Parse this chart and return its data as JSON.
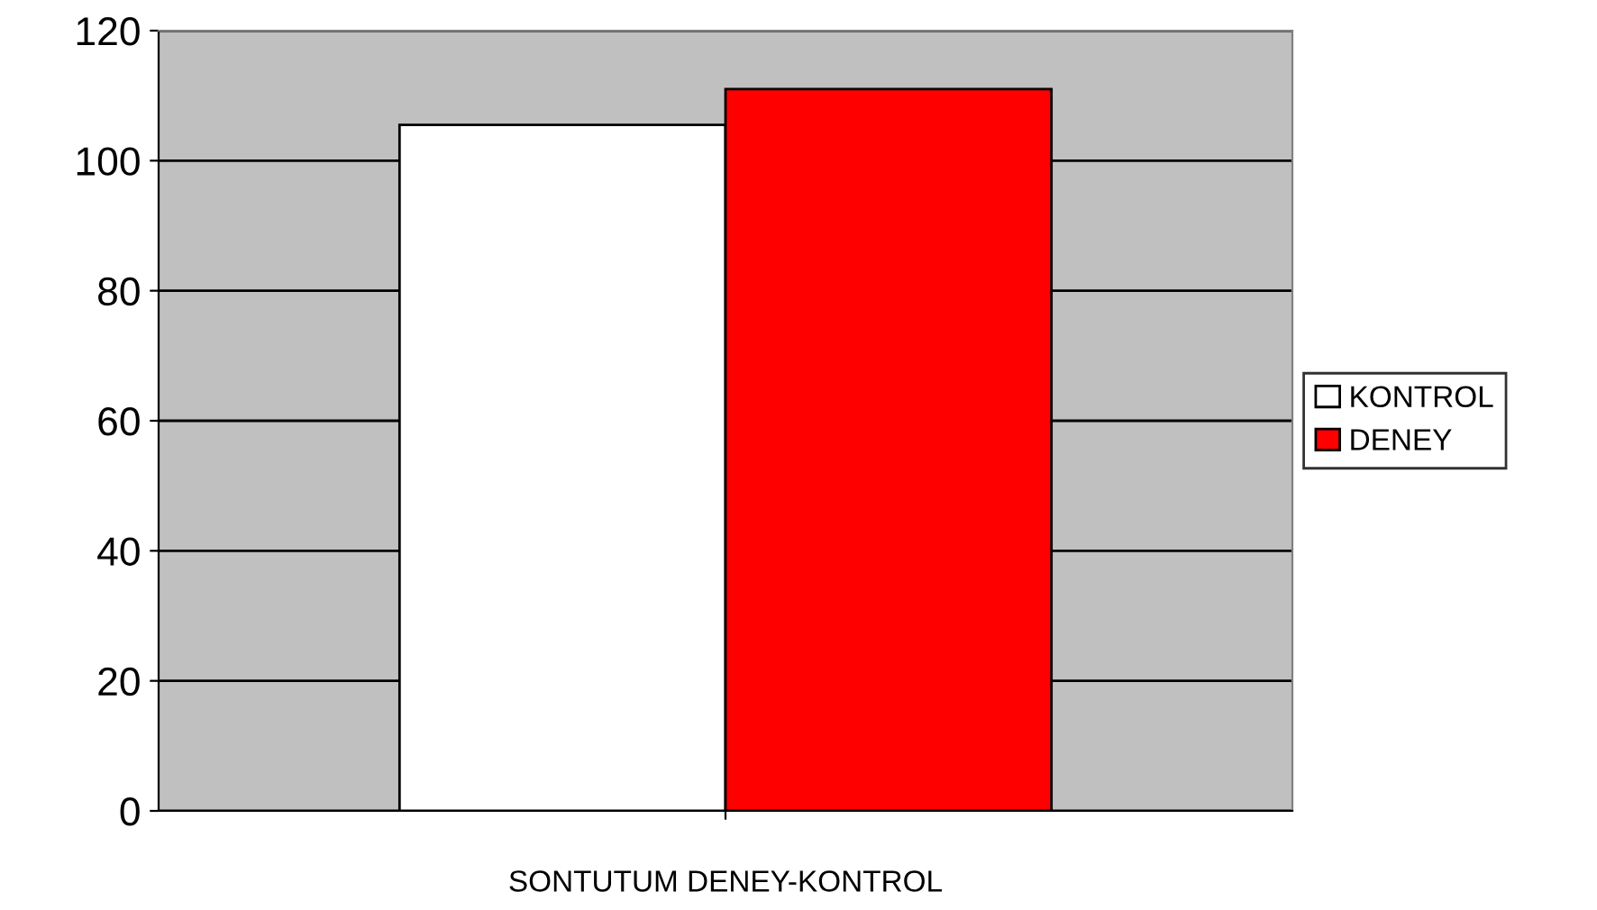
{
  "chart_data": {
    "type": "bar",
    "categories": [
      "SONTUTUM DENEY-KONTROL"
    ],
    "series": [
      {
        "name": "KONTROL",
        "color": "#ffffff",
        "values": [
          105.5
        ]
      },
      {
        "name": "DENEY",
        "color": "#ff0000",
        "values": [
          111
        ]
      }
    ],
    "ylim": [
      0,
      120
    ],
    "yticks": [
      0,
      20,
      40,
      60,
      80,
      100,
      120
    ],
    "grid": "y",
    "legend": "right"
  }
}
